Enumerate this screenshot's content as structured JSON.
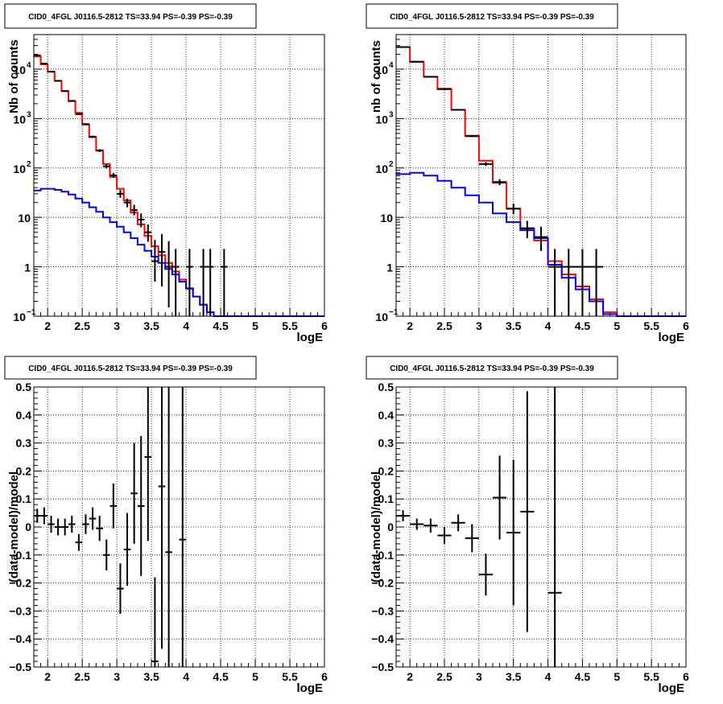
{
  "panel_title": "CID0_4FGL J0116.5-2812 TS=33.94 PS=-0.39 PS=-0.39",
  "colors": {
    "data": "#000000",
    "total_model": "#ff0000",
    "background_model": "#0000ff",
    "grid": "#000000"
  },
  "chart_data": [
    {
      "type": "line",
      "title": "CID0_4FGL J0116.5-2812 TS=33.94 PS=-0.39 PS=-0.39",
      "xlabel": "logE",
      "ylabel": "Nb of counts",
      "xlim": [
        1.8,
        6.0
      ],
      "ylim": [
        0.1,
        50000
      ],
      "yscale": "log",
      "grid": true,
      "x_ticks": [
        "2",
        "2.5",
        "3",
        "3.5",
        "4",
        "4.5",
        "5",
        "5.5",
        "6"
      ],
      "y_ticks": [
        {
          "value": 0.1,
          "label": "10",
          "exp": "−1"
        },
        {
          "value": 1,
          "label": "1",
          "exp": ""
        },
        {
          "value": 10,
          "label": "10",
          "exp": ""
        },
        {
          "value": 100,
          "label": "10",
          "exp": "2"
        },
        {
          "value": 1000,
          "label": "10",
          "exp": "3"
        },
        {
          "value": 10000,
          "label": "10",
          "exp": "4"
        }
      ],
      "bin_width": 0.1,
      "bin_starts": [
        1.8,
        1.9,
        2.0,
        2.1,
        2.2,
        2.3,
        2.4,
        2.5,
        2.6,
        2.7,
        2.8,
        2.9,
        3.0,
        3.1,
        3.2,
        3.3,
        3.4,
        3.5,
        3.6,
        3.7,
        3.8,
        3.9,
        4.0,
        4.1,
        4.2,
        4.3,
        4.4,
        4.5,
        4.6,
        4.7,
        4.8,
        4.9,
        5.0,
        5.1,
        5.2,
        5.3,
        5.4,
        5.5,
        5.6,
        5.7,
        5.8,
        5.9
      ],
      "series": [
        {
          "role": "total_model",
          "values": [
            18000,
            12500,
            8800,
            5800,
            3600,
            2250,
            1300,
            760,
            420,
            225,
            120,
            66,
            38,
            22,
            12.5,
            7.2,
            4.2,
            2.6,
            1.7,
            1.2,
            0.8,
            0.55,
            0.37,
            0.25,
            0.17,
            0.12,
            0.1,
            0.1,
            0.1,
            0.1,
            0.1,
            0.1,
            0.1,
            0.1,
            0.1,
            0.1,
            0.1,
            0.1,
            0.1,
            0.1,
            0.1,
            0.1
          ]
        },
        {
          "role": "background_model",
          "values": [
            35,
            38,
            38,
            36,
            33,
            29,
            24,
            20,
            16,
            13,
            10,
            8,
            6.5,
            5,
            3.8,
            2.8,
            2.1,
            1.6,
            1.2,
            0.9,
            0.7,
            0.5,
            0.36,
            0.25,
            0.17,
            0.12,
            0.1,
            0.1,
            0.1,
            0.1,
            0.1,
            0.1,
            0.1,
            0.1,
            0.1,
            0.1,
            0.1,
            0.1,
            0.1,
            0.1,
            0.1,
            0.1
          ]
        }
      ],
      "points": [
        {
          "x": 1.85,
          "y": 19000,
          "ylo": 18800,
          "yhi": 19200
        },
        {
          "x": 1.95,
          "y": 13000,
          "ylo": 12800,
          "yhi": 13200
        },
        {
          "x": 2.05,
          "y": 8900,
          "ylo": 8750,
          "yhi": 9050
        },
        {
          "x": 2.15,
          "y": 5800,
          "ylo": 5680,
          "yhi": 5920
        },
        {
          "x": 2.25,
          "y": 3600,
          "ylo": 3500,
          "yhi": 3700
        },
        {
          "x": 2.35,
          "y": 2280,
          "ylo": 2200,
          "yhi": 2360
        },
        {
          "x": 2.45,
          "y": 1230,
          "ylo": 1180,
          "yhi": 1280
        },
        {
          "x": 2.55,
          "y": 770,
          "ylo": 730,
          "yhi": 810
        },
        {
          "x": 2.65,
          "y": 430,
          "ylo": 410,
          "yhi": 450
        },
        {
          "x": 2.75,
          "y": 225,
          "ylo": 210,
          "yhi": 240
        },
        {
          "x": 2.85,
          "y": 108,
          "ylo": 98,
          "yhi": 118
        },
        {
          "x": 2.95,
          "y": 71,
          "ylo": 63,
          "yhi": 79
        },
        {
          "x": 3.05,
          "y": 30,
          "ylo": 25,
          "yhi": 36
        },
        {
          "x": 3.15,
          "y": 20,
          "ylo": 16,
          "yhi": 24
        },
        {
          "x": 3.25,
          "y": 14,
          "ylo": 11,
          "yhi": 18
        },
        {
          "x": 3.35,
          "y": 9,
          "ylo": 6.3,
          "yhi": 12
        },
        {
          "x": 3.45,
          "y": 5,
          "ylo": 3.2,
          "yhi": 7.2
        },
        {
          "x": 3.55,
          "y": 1.3,
          "ylo": 0.5,
          "yhi": 3.5
        },
        {
          "x": 3.65,
          "y": 2,
          "ylo": 0.4,
          "yhi": 4.6
        },
        {
          "x": 3.75,
          "y": 1,
          "ylo": 0.15,
          "yhi": 3.3
        },
        {
          "x": 3.85,
          "y": 1,
          "ylo": 0.1,
          "yhi": 2.3
        },
        {
          "x": 4.05,
          "y": 1,
          "ylo": 0.1,
          "yhi": 2.3
        },
        {
          "x": 4.25,
          "y": 1,
          "ylo": 0.1,
          "yhi": 2.3
        },
        {
          "x": 4.35,
          "y": 1,
          "ylo": 0.1,
          "yhi": 2.3
        },
        {
          "x": 4.55,
          "y": 1,
          "ylo": 0.1,
          "yhi": 2.3
        }
      ]
    },
    {
      "type": "line",
      "title": "CID0_4FGL J0116.5-2812 TS=33.94 PS=-0.39 PS=-0.39",
      "xlabel": "logE",
      "ylabel": "nb of counts",
      "xlim": [
        1.8,
        6.0
      ],
      "ylim": [
        0.1,
        50000
      ],
      "yscale": "log",
      "grid": true,
      "x_ticks": [
        "2",
        "2.5",
        "3",
        "3.5",
        "4",
        "4.5",
        "5",
        "5.5",
        "6"
      ],
      "y_ticks": [
        {
          "value": 0.1,
          "label": "10",
          "exp": "−1"
        },
        {
          "value": 1,
          "label": "1",
          "exp": ""
        },
        {
          "value": 10,
          "label": "10",
          "exp": ""
        },
        {
          "value": 100,
          "label": "10",
          "exp": "2"
        },
        {
          "value": 1000,
          "label": "10",
          "exp": "3"
        },
        {
          "value": 10000,
          "label": "10",
          "exp": "4"
        }
      ],
      "bin_width": 0.2,
      "bin_starts": [
        1.8,
        2.0,
        2.2,
        2.4,
        2.6,
        2.8,
        3.0,
        3.2,
        3.4,
        3.6,
        3.8,
        4.0,
        4.2,
        4.4,
        4.6,
        4.8,
        5.0,
        5.2,
        5.4,
        5.6,
        5.8
      ],
      "series": [
        {
          "role": "total_model",
          "values": [
            28000,
            14000,
            7000,
            3900,
            1500,
            450,
            140,
            50,
            15,
            6,
            3.4,
            1.3,
            0.7,
            0.4,
            0.22,
            0.12,
            0.1,
            0.1,
            0.1,
            0.1,
            0.1
          ]
        },
        {
          "role": "background_model",
          "values": [
            75,
            80,
            70,
            55,
            40,
            28,
            20,
            12,
            8,
            5.5,
            3.8,
            1.1,
            0.6,
            0.35,
            0.2,
            0.11,
            0.1,
            0.1,
            0.1,
            0.1,
            0.1
          ]
        }
      ],
      "points": [
        {
          "x": 1.9,
          "y": 28000,
          "ylo": 27800,
          "yhi": 28200
        },
        {
          "x": 2.1,
          "y": 14200,
          "ylo": 14000,
          "yhi": 14400
        },
        {
          "x": 2.3,
          "y": 7000,
          "ylo": 6900,
          "yhi": 7100
        },
        {
          "x": 2.5,
          "y": 4000,
          "ylo": 3930,
          "yhi": 4070
        },
        {
          "x": 2.7,
          "y": 1500,
          "ylo": 1460,
          "yhi": 1540
        },
        {
          "x": 2.9,
          "y": 440,
          "ylo": 420,
          "yhi": 460
        },
        {
          "x": 3.1,
          "y": 120,
          "ylo": 110,
          "yhi": 131
        },
        {
          "x": 3.3,
          "y": 52,
          "ylo": 45,
          "yhi": 59
        },
        {
          "x": 3.5,
          "y": 15,
          "ylo": 11.5,
          "yhi": 19
        },
        {
          "x": 3.7,
          "y": 6,
          "ylo": 3.8,
          "yhi": 8.5
        },
        {
          "x": 3.9,
          "y": 4,
          "ylo": 2.1,
          "yhi": 6.5
        },
        {
          "x": 4.1,
          "y": 1,
          "ylo": 0.1,
          "yhi": 2.3
        },
        {
          "x": 4.3,
          "y": 1,
          "ylo": 0.1,
          "yhi": 2.3
        },
        {
          "x": 4.5,
          "y": 1,
          "ylo": 0.1,
          "yhi": 2.3
        },
        {
          "x": 4.7,
          "y": 1,
          "ylo": 0.1,
          "yhi": 2.3
        }
      ]
    },
    {
      "type": "scatter",
      "title": "CID0_4FGL J0116.5-2812 TS=33.94 PS=-0.39 PS=-0.39",
      "xlabel": "logE",
      "ylabel": "(data-model)/model",
      "xlim": [
        1.8,
        6.0
      ],
      "ylim": [
        -0.5,
        0.5
      ],
      "grid": true,
      "x_ticks": [
        "2",
        "2.5",
        "3",
        "3.5",
        "4",
        "4.5",
        "5",
        "5.5",
        "6"
      ],
      "y_ticks": [
        "−0.5",
        "−0.4",
        "−0.3",
        "−0.2",
        "−0.1",
        "0",
        "0.1",
        "0.2",
        "0.3",
        "0.4",
        "0.5"
      ],
      "bin_width": 0.1,
      "points": [
        {
          "x": 1.85,
          "y": 0.04,
          "err": 0.025
        },
        {
          "x": 1.95,
          "y": 0.04,
          "err": 0.03
        },
        {
          "x": 2.05,
          "y": 0.01,
          "err": 0.03
        },
        {
          "x": 2.15,
          "y": 0.0,
          "err": 0.03
        },
        {
          "x": 2.25,
          "y": 0.0,
          "err": 0.03
        },
        {
          "x": 2.35,
          "y": 0.01,
          "err": 0.03
        },
        {
          "x": 2.45,
          "y": -0.055,
          "err": 0.03
        },
        {
          "x": 2.55,
          "y": 0.01,
          "err": 0.035
        },
        {
          "x": 2.65,
          "y": 0.03,
          "err": 0.04
        },
        {
          "x": 2.75,
          "y": -0.005,
          "err": 0.045
        },
        {
          "x": 2.85,
          "y": -0.1,
          "err": 0.055
        },
        {
          "x": 2.95,
          "y": 0.075,
          "err": 0.08
        },
        {
          "x": 3.05,
          "y": -0.22,
          "err": 0.09
        },
        {
          "x": 3.15,
          "y": -0.08,
          "err": 0.13
        },
        {
          "x": 3.25,
          "y": 0.12,
          "err": 0.18
        },
        {
          "x": 3.35,
          "y": 0.075,
          "err": 0.25
        },
        {
          "x": 3.45,
          "y": 0.25,
          "err": 0.3
        },
        {
          "x": 3.55,
          "y": -0.48,
          "err": 0.3
        },
        {
          "x": 3.65,
          "y": 0.145,
          "err": 0.58
        },
        {
          "x": 3.75,
          "y": -0.09,
          "err": 0.8
        },
        {
          "x": 3.95,
          "y": -0.045,
          "err": 0.9
        }
      ]
    },
    {
      "type": "scatter",
      "title": "CID0_4FGL J0116.5-2812 TS=33.94 PS=-0.39 PS=-0.39",
      "xlabel": "logE",
      "ylabel": "(data-model)/model",
      "xlim": [
        1.8,
        6.0
      ],
      "ylim": [
        -0.5,
        0.5
      ],
      "grid": true,
      "x_ticks": [
        "2",
        "2.5",
        "3",
        "3.5",
        "4",
        "4.5",
        "5",
        "5.5",
        "6"
      ],
      "y_ticks": [
        "−0.5",
        "−0.4",
        "−0.3",
        "−0.2",
        "−0.1",
        "0",
        "0.1",
        "0.2",
        "0.3",
        "0.4",
        "0.5"
      ],
      "bin_width": 0.2,
      "points": [
        {
          "x": 1.9,
          "y": 0.04,
          "err": 0.02
        },
        {
          "x": 2.1,
          "y": 0.01,
          "err": 0.02
        },
        {
          "x": 2.3,
          "y": 0.005,
          "err": 0.025
        },
        {
          "x": 2.5,
          "y": -0.03,
          "err": 0.03
        },
        {
          "x": 2.7,
          "y": 0.015,
          "err": 0.03
        },
        {
          "x": 2.9,
          "y": -0.04,
          "err": 0.05
        },
        {
          "x": 3.1,
          "y": -0.17,
          "err": 0.075
        },
        {
          "x": 3.3,
          "y": 0.105,
          "err": 0.15
        },
        {
          "x": 3.5,
          "y": -0.02,
          "err": 0.26
        },
        {
          "x": 3.7,
          "y": 0.055,
          "err": 0.43
        },
        {
          "x": 4.1,
          "y": -0.235,
          "err": 0.8
        }
      ]
    }
  ]
}
